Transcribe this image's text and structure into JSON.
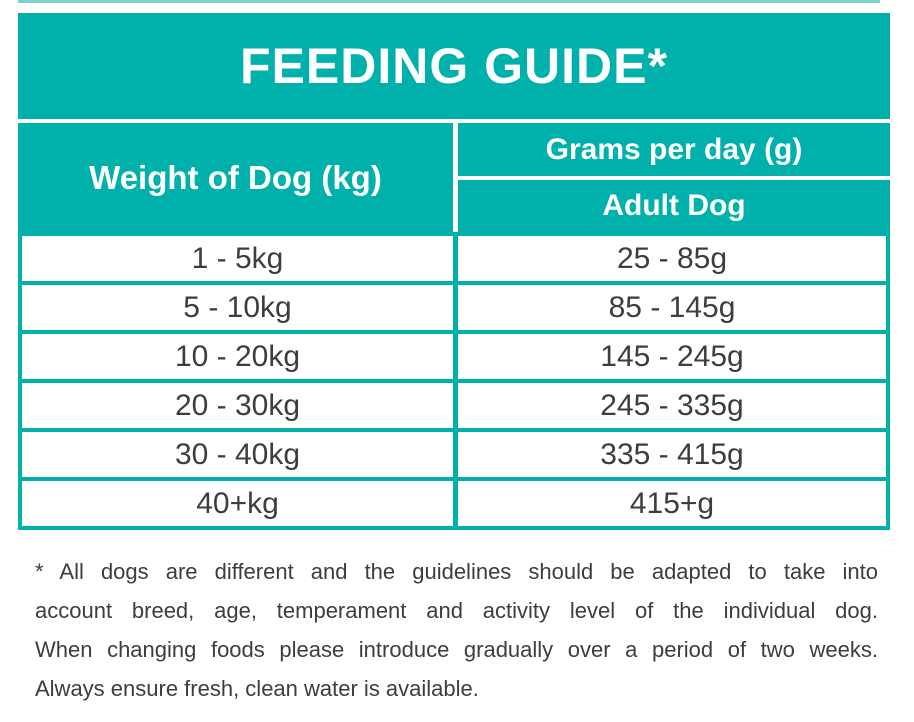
{
  "colors": {
    "teal": "#00b1ab",
    "top_sliver_teal": "#7fd1ce",
    "header_text": "#ffffff",
    "body_text": "#3d3d3d",
    "cell_background": "#ffffff"
  },
  "banner": {
    "title": "FEEDING GUIDE*"
  },
  "table": {
    "weight_header": "Weight of Dog (kg)",
    "grams_header": "Grams per day (g)",
    "adult_header": "Adult Dog",
    "rows": [
      {
        "weight": "1 - 5kg",
        "grams": "25 - 85g"
      },
      {
        "weight": "5 - 10kg",
        "grams": "85 - 145g"
      },
      {
        "weight": "10 - 20kg",
        "grams": "145 - 245g"
      },
      {
        "weight": "20 - 30kg",
        "grams": "245 - 335g"
      },
      {
        "weight": "30 - 40kg",
        "grams": "335 - 415g"
      },
      {
        "weight": "40+kg",
        "grams": "415+g"
      }
    ]
  },
  "footnote": {
    "lines": [
      "* All dogs are different and the guidelines should be adapted to take into",
      "account breed, age, temperament and activity level of the individual dog.",
      "When changing foods please introduce gradually over a period of two weeks.",
      "Always ensure fresh, clean water is available."
    ],
    "full_text": "* All dogs are different and the guidelines should be adapted to take into account breed, age, temperament and activity level of the individual dog. When changing foods please introduce gradually over a period of two weeks. Always ensure fresh, clean water is available."
  },
  "chart_data": {
    "type": "table",
    "title": "FEEDING GUIDE*",
    "columns": [
      "Weight of Dog (kg)",
      "Grams per day (g) - Adult Dog"
    ],
    "rows": [
      [
        "1 - 5kg",
        "25 - 85g"
      ],
      [
        "5 - 10kg",
        "85 - 145g"
      ],
      [
        "10 - 20kg",
        "145 - 245g"
      ],
      [
        "20 - 30kg",
        "245 - 335g"
      ],
      [
        "30 - 40kg",
        "335 - 415g"
      ],
      [
        "40+kg",
        "415+g"
      ]
    ]
  }
}
